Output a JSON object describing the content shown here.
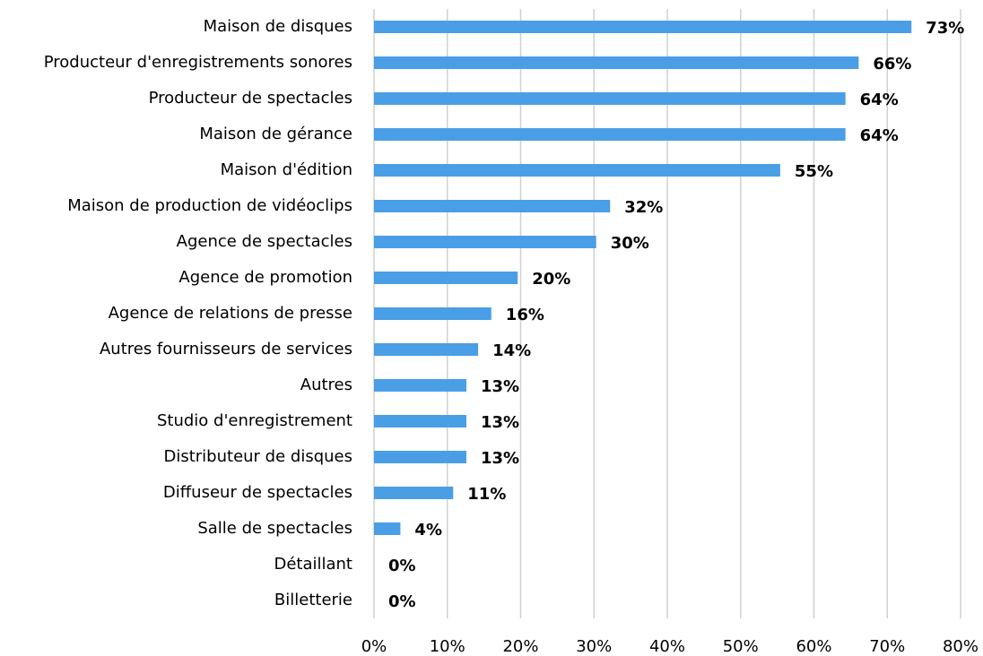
{
  "chart_data": {
    "type": "barh",
    "categories": [
      "Maison de disques",
      "Producteur d'enregistrements sonores",
      "Producteur de spectacles",
      "Maison de gérance",
      "Maison d'édition",
      "Maison de production de vidéoclips",
      "Agence de spectacles",
      "Agence de promotion",
      "Agence de relations de presse",
      "Autres fournisseurs de services",
      "Autres",
      "Studio d'enregistrement",
      "Distributeur de disques",
      "Diffuseur de spectacles",
      "Salle de spectacles",
      "Détaillant",
      "Billetterie"
    ],
    "values": [
      73.3,
      66.1,
      64.3,
      64.3,
      55.4,
      32.2,
      30.3,
      19.6,
      16.0,
      14.2,
      12.6,
      12.6,
      12.6,
      10.8,
      3.6,
      0,
      0
    ],
    "value_labels": [
      "73%",
      "66%",
      "64%",
      "64%",
      "55%",
      "32%",
      "30%",
      "20%",
      "16%",
      "14%",
      "13%",
      "13%",
      "13%",
      "11%",
      "4%",
      "0%",
      "0%"
    ],
    "color": "#4a9ee6",
    "xlim": [
      0,
      80
    ],
    "xticks": [
      {
        "value": 0,
        "label": "0%"
      },
      {
        "value": 10,
        "label": "10%"
      },
      {
        "value": 20,
        "label": "20%"
      },
      {
        "value": 30,
        "label": "30%"
      },
      {
        "value": 40,
        "label": "40%"
      },
      {
        "value": 50,
        "label": "50%"
      },
      {
        "value": 60,
        "label": "60%"
      },
      {
        "value": 70,
        "label": "70%"
      },
      {
        "value": 80,
        "label": "80%"
      }
    ],
    "grid": true
  }
}
